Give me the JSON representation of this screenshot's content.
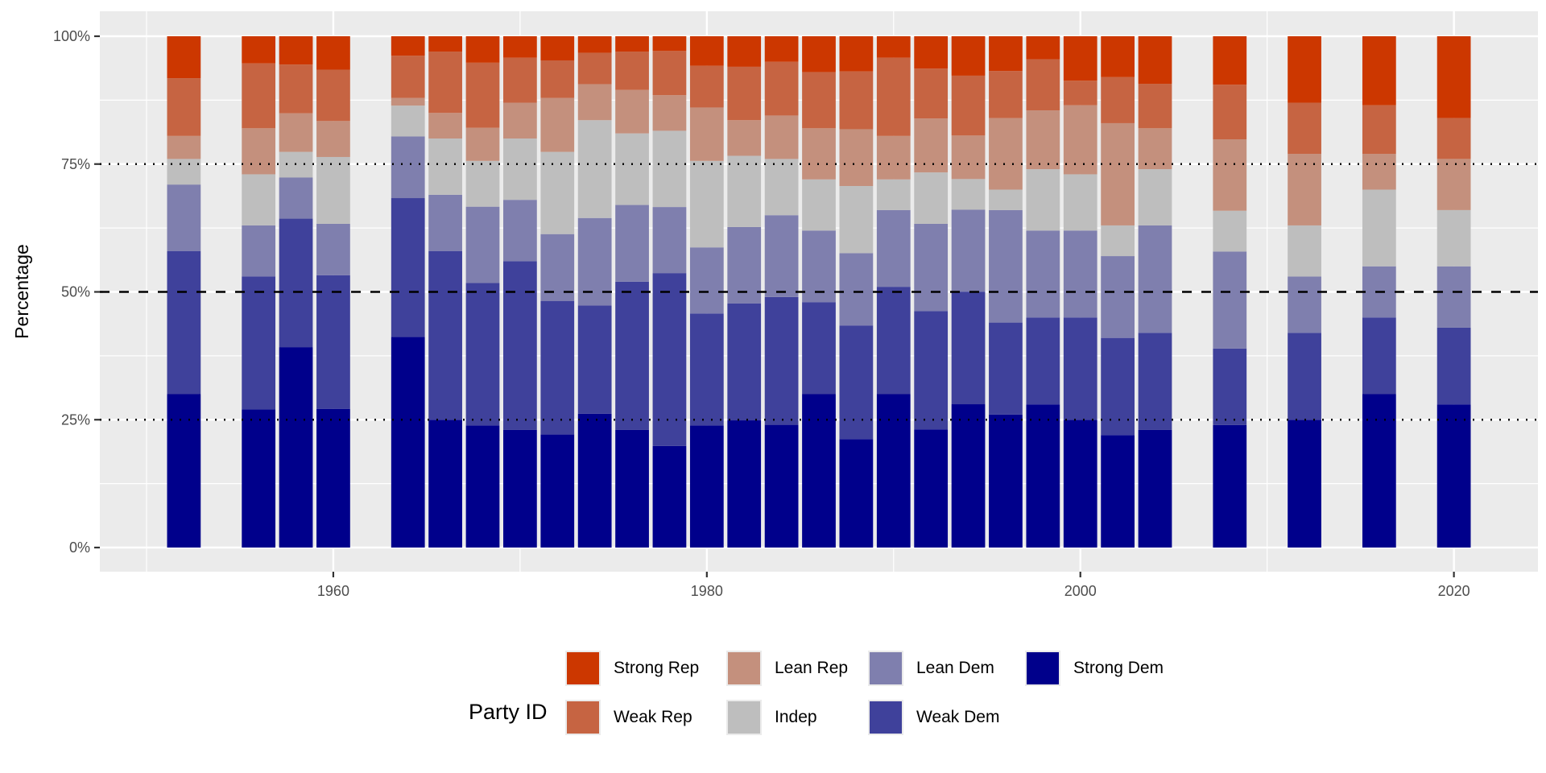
{
  "chart_data": {
    "type": "bar",
    "stacked": true,
    "percent": true,
    "title": "",
    "xlabel": "",
    "ylabel": "Percentage",
    "xlim": [
      1947.5,
      2024.5
    ],
    "ylim": [
      0,
      1
    ],
    "x_ticks": [
      1960,
      1980,
      2000,
      2020
    ],
    "x_tick_labels": [
      "1960",
      "1980",
      "2000",
      "2020"
    ],
    "y_ticks": [
      0,
      0.25,
      0.5,
      0.75,
      1.0
    ],
    "y_tick_labels": [
      "0%",
      "25%",
      "50%",
      "75%",
      "100%"
    ],
    "grid": true,
    "reference_lines": [
      {
        "y": 0.25,
        "style": "dotted",
        "color": "#000000"
      },
      {
        "y": 0.5,
        "style": "dashed",
        "color": "#000000"
      },
      {
        "y": 0.75,
        "style": "dotted",
        "color": "#000000"
      }
    ],
    "legend": {
      "title": "Party ID",
      "position": "bottom",
      "entries": [
        {
          "name": "Strong Rep",
          "color": "#CC3700"
        },
        {
          "name": "Weak Rep",
          "color": "#C66442"
        },
        {
          "name": "Lean Rep",
          "color": "#C4907D"
        },
        {
          "name": "Indep",
          "color": "#BEBEBE"
        },
        {
          "name": "Lean Dem",
          "color": "#7F7FAE"
        },
        {
          "name": "Weak Dem",
          "color": "#3F419B"
        },
        {
          "name": "Strong Dem",
          "color": "#00008B"
        }
      ]
    },
    "stack_order_bottom_to_top": [
      "Strong Dem",
      "Weak Dem",
      "Lean Dem",
      "Indep",
      "Lean Rep",
      "Weak Rep",
      "Strong Rep"
    ],
    "x": [
      1952,
      1956,
      1958,
      1960,
      1964,
      1966,
      1968,
      1970,
      1972,
      1974,
      1976,
      1978,
      1980,
      1982,
      1984,
      1986,
      1988,
      1990,
      1992,
      1994,
      1996,
      1998,
      2000,
      2002,
      2004,
      2008,
      2012,
      2016,
      2020
    ],
    "series": [
      {
        "name": "Strong Dem",
        "values": [
          0.3,
          0.27,
          0.39,
          0.27,
          0.41,
          0.25,
          0.24,
          0.23,
          0.22,
          0.26,
          0.23,
          0.2,
          0.24,
          0.25,
          0.24,
          0.3,
          0.21,
          0.3,
          0.23,
          0.28,
          0.26,
          0.28,
          0.25,
          0.22,
          0.23,
          0.24,
          0.25,
          0.3,
          0.28
        ]
      },
      {
        "name": "Weak Dem",
        "values": [
          0.28,
          0.26,
          0.25,
          0.26,
          0.27,
          0.33,
          0.28,
          0.33,
          0.26,
          0.21,
          0.29,
          0.34,
          0.22,
          0.23,
          0.25,
          0.18,
          0.22,
          0.21,
          0.23,
          0.22,
          0.18,
          0.17,
          0.2,
          0.19,
          0.19,
          0.15,
          0.17,
          0.15,
          0.15
        ]
      },
      {
        "name": "Lean Dem",
        "values": [
          0.13,
          0.1,
          0.08,
          0.1,
          0.12,
          0.11,
          0.15,
          0.12,
          0.13,
          0.17,
          0.15,
          0.13,
          0.13,
          0.15,
          0.16,
          0.14,
          0.14,
          0.15,
          0.17,
          0.16,
          0.22,
          0.17,
          0.17,
          0.16,
          0.21,
          0.19,
          0.11,
          0.1,
          0.12
        ]
      },
      {
        "name": "Indep",
        "values": [
          0.05,
          0.1,
          0.05,
          0.13,
          0.06,
          0.11,
          0.09,
          0.12,
          0.16,
          0.19,
          0.14,
          0.15,
          0.17,
          0.14,
          0.11,
          0.1,
          0.13,
          0.06,
          0.1,
          0.06,
          0.04,
          0.12,
          0.11,
          0.06,
          0.11,
          0.08,
          0.1,
          0.15,
          0.11
        ]
      },
      {
        "name": "Lean Rep",
        "values": [
          0.045,
          0.09,
          0.075,
          0.07,
          0.015,
          0.05,
          0.065,
          0.07,
          0.105,
          0.07,
          0.085,
          0.07,
          0.105,
          0.07,
          0.085,
          0.1,
          0.11,
          0.085,
          0.105,
          0.085,
          0.14,
          0.115,
          0.135,
          0.2,
          0.08,
          0.14,
          0.14,
          0.07,
          0.1
        ]
      },
      {
        "name": "Weak Rep",
        "values": [
          0.113,
          0.127,
          0.095,
          0.1,
          0.082,
          0.12,
          0.128,
          0.088,
          0.073,
          0.061,
          0.075,
          0.087,
          0.082,
          0.105,
          0.105,
          0.11,
          0.112,
          0.153,
          0.097,
          0.117,
          0.092,
          0.1,
          0.048,
          0.09,
          0.087,
          0.107,
          0.1,
          0.095,
          0.08
        ]
      },
      {
        "name": "Strong Rep",
        "values": [
          0.082,
          0.053,
          0.055,
          0.065,
          0.038,
          0.03,
          0.052,
          0.042,
          0.047,
          0.032,
          0.03,
          0.029,
          0.058,
          0.06,
          0.05,
          0.07,
          0.068,
          0.042,
          0.063,
          0.077,
          0.068,
          0.045,
          0.087,
          0.08,
          0.093,
          0.095,
          0.13,
          0.135,
          0.16
        ]
      }
    ]
  }
}
